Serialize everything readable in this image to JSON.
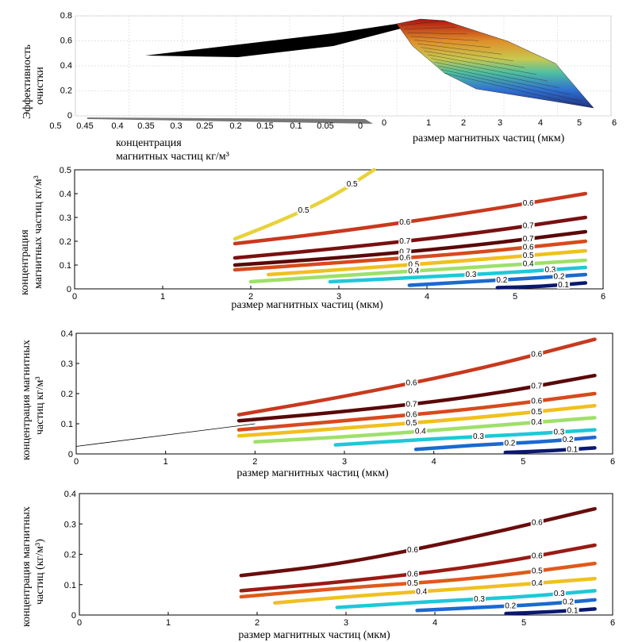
{
  "chart_data": [
    {
      "type": "surface",
      "zlabel": "Эффективность очистки",
      "xlabel_lines": [
        "концентрация",
        "магнитных частиц кг/м³"
      ],
      "ylabel": "размер магнитных частиц (мкм)",
      "z_ticks": [
        "0",
        "0.2",
        "0.4",
        "0.6",
        "0.8"
      ],
      "x_ticks": [
        "0.5",
        "0.45",
        "0.4",
        "0.35",
        "0.3",
        "0.25",
        "0.2",
        "0.15",
        "0.1",
        "0.05",
        "0"
      ],
      "y_ticks": [
        "0",
        "1",
        "2",
        "3",
        "4",
        "5",
        "6"
      ],
      "xlim": [
        0,
        0.5
      ],
      "ylim": [
        0,
        6
      ],
      "zlim": [
        0,
        0.8
      ]
    },
    {
      "type": "contour",
      "xlabel": "размер магнитных частиц (мкм)",
      "ylabel_lines": [
        "концентрация",
        "магнитных частиц кг/м³"
      ],
      "xlim": [
        0,
        6
      ],
      "ylim": [
        0,
        0.5
      ],
      "x_ticks": [
        "0",
        "1",
        "2",
        "3",
        "4",
        "5",
        "6"
      ],
      "y_ticks": [
        "0",
        "0.1",
        "0.2",
        "0.3",
        "0.4",
        "0.5"
      ],
      "levels": [
        {
          "level": 0.5,
          "label": "0.5",
          "color": "#e8d23a",
          "points": [
            [
              1.82,
              0.21
            ],
            [
              2.3,
              0.28
            ],
            [
              2.9,
              0.38
            ],
            [
              3.4,
              0.5
            ]
          ]
        },
        {
          "level": 0.6,
          "label": "0.6",
          "color": "#c8391e",
          "points": [
            [
              1.82,
              0.19
            ],
            [
              3.0,
              0.24
            ],
            [
              4.5,
              0.32
            ],
            [
              5.8,
              0.4
            ]
          ]
        },
        {
          "level": 0.7,
          "label": "0.7",
          "color": "#7a1010",
          "points": [
            [
              1.82,
              0.13
            ],
            [
              3.0,
              0.17
            ],
            [
              4.5,
              0.23
            ],
            [
              5.8,
              0.3
            ]
          ]
        },
        {
          "level": 0.7,
          "label": "0.7",
          "color": "#5a0808",
          "points": [
            [
              1.82,
              0.1
            ],
            [
              3.0,
              0.13
            ],
            [
              4.5,
              0.18
            ],
            [
              5.8,
              0.24
            ]
          ]
        },
        {
          "level": 0.6,
          "label": "0.6",
          "color": "#d84a1c",
          "points": [
            [
              1.82,
              0.08
            ],
            [
              3.0,
              0.11
            ],
            [
              4.5,
              0.15
            ],
            [
              5.8,
              0.2
            ]
          ]
        },
        {
          "level": 0.5,
          "label": "0.5",
          "color": "#f0c020",
          "points": [
            [
              2.2,
              0.06
            ],
            [
              3.2,
              0.085
            ],
            [
              4.5,
              0.12
            ],
            [
              5.8,
              0.16
            ]
          ]
        },
        {
          "level": 0.4,
          "label": "0.4",
          "color": "#9ee06a",
          "points": [
            [
              2.0,
              0.03
            ],
            [
              3.2,
              0.06
            ],
            [
              4.5,
              0.09
            ],
            [
              5.8,
              0.12
            ]
          ]
        },
        {
          "level": 0.3,
          "label": "0.3",
          "color": "#1ec8d8",
          "points": [
            [
              2.9,
              0.03
            ],
            [
              4.0,
              0.05
            ],
            [
              5.0,
              0.07
            ],
            [
              5.8,
              0.09
            ]
          ]
        },
        {
          "level": 0.2,
          "label": "0.2",
          "color": "#1a6ad0",
          "points": [
            [
              3.8,
              0.015
            ],
            [
              4.5,
              0.03
            ],
            [
              5.2,
              0.045
            ],
            [
              5.8,
              0.06
            ]
          ]
        },
        {
          "level": 0.1,
          "label": "0.1",
          "color": "#0a1870",
          "points": [
            [
              4.8,
              0.005
            ],
            [
              5.3,
              0.01
            ],
            [
              5.8,
              0.025
            ]
          ]
        }
      ]
    },
    {
      "type": "contour",
      "xlabel": "размер магнитных частиц (мкм)",
      "ylabel_lines": [
        "концентрация магнитных",
        "частиц кг/м³"
      ],
      "xlim": [
        0,
        6
      ],
      "ylim": [
        0,
        0.4
      ],
      "x_ticks": [
        "0",
        "1",
        "2",
        "3",
        "4",
        "5",
        "6"
      ],
      "y_ticks": [
        "0",
        "0.1",
        "0.2",
        "0.3",
        "0.4"
      ],
      "levels": [
        {
          "level": 0.6,
          "label": "0.6",
          "color": "#c8391e",
          "points": [
            [
              1.82,
              0.13
            ],
            [
              3.0,
              0.19
            ],
            [
              4.5,
              0.28
            ],
            [
              5.8,
              0.38
            ]
          ]
        },
        {
          "level": 0.7,
          "label": "0.7",
          "color": "#5a0808",
          "points": [
            [
              1.82,
              0.11
            ],
            [
              3.0,
              0.14
            ],
            [
              4.5,
              0.19
            ],
            [
              5.8,
              0.26
            ]
          ]
        },
        {
          "level": 0.6,
          "label": "0.6",
          "color": "#d84a1c",
          "points": [
            [
              1.82,
              0.08
            ],
            [
              3.0,
              0.11
            ],
            [
              4.5,
              0.15
            ],
            [
              5.8,
              0.2
            ]
          ]
        },
        {
          "level": 0.5,
          "label": "0.5",
          "color": "#f0c020",
          "points": [
            [
              1.82,
              0.06
            ],
            [
              3.0,
              0.085
            ],
            [
              4.5,
              0.12
            ],
            [
              5.8,
              0.16
            ]
          ]
        },
        {
          "level": 0.4,
          "label": "0.4",
          "color": "#9ee06a",
          "points": [
            [
              2.0,
              0.04
            ],
            [
              3.2,
              0.06
            ],
            [
              4.5,
              0.09
            ],
            [
              5.8,
              0.12
            ]
          ]
        },
        {
          "level": 0.3,
          "label": "0.3",
          "color": "#1ec8d8",
          "points": [
            [
              2.9,
              0.03
            ],
            [
              4.0,
              0.05
            ],
            [
              5.0,
              0.065
            ],
            [
              5.8,
              0.08
            ]
          ]
        },
        {
          "level": 0.2,
          "label": "0.2",
          "color": "#1a6ad0",
          "points": [
            [
              3.8,
              0.015
            ],
            [
              4.5,
              0.03
            ],
            [
              5.2,
              0.04
            ],
            [
              5.8,
              0.055
            ]
          ]
        },
        {
          "level": 0.1,
          "label": "0.1",
          "color": "#0a1870",
          "points": [
            [
              4.8,
              0.005
            ],
            [
              5.3,
              0.01
            ],
            [
              5.8,
              0.02
            ]
          ]
        }
      ]
    },
    {
      "type": "contour",
      "xlabel": "размер магнитных частиц (мкм)",
      "ylabel_lines": [
        "концентрация магнитных",
        "частиц (кг/м³)"
      ],
      "xlim": [
        0,
        6
      ],
      "ylim": [
        0,
        0.4
      ],
      "x_ticks": [
        "0",
        "1",
        "2",
        "3",
        "4",
        "5",
        "6"
      ],
      "y_ticks": [
        "0",
        "0.1",
        "0.2",
        "0.3",
        "0.4"
      ],
      "levels": [
        {
          "level": 0.6,
          "label": "0.6",
          "color": "#6a0c0c",
          "points": [
            [
              1.82,
              0.13
            ],
            [
              3.0,
              0.17
            ],
            [
              4.5,
              0.26
            ],
            [
              5.8,
              0.35
            ]
          ]
        },
        {
          "level": 0.6,
          "label": "0.6",
          "color": "#9a1a14",
          "points": [
            [
              1.82,
              0.08
            ],
            [
              3.0,
              0.11
            ],
            [
              4.5,
              0.16
            ],
            [
              5.8,
              0.23
            ]
          ]
        },
        {
          "level": 0.5,
          "label": "0.5",
          "color": "#e05a1a",
          "points": [
            [
              1.82,
              0.06
            ],
            [
              3.0,
              0.09
            ],
            [
              4.5,
              0.12
            ],
            [
              5.8,
              0.17
            ]
          ]
        },
        {
          "level": 0.4,
          "label": "0.4",
          "color": "#f0c020",
          "points": [
            [
              2.2,
              0.04
            ],
            [
              3.2,
              0.065
            ],
            [
              4.5,
              0.09
            ],
            [
              5.8,
              0.12
            ]
          ]
        },
        {
          "level": 0.3,
          "label": "0.3",
          "color": "#1ec8d8",
          "points": [
            [
              2.9,
              0.025
            ],
            [
              4.0,
              0.045
            ],
            [
              5.0,
              0.06
            ],
            [
              5.8,
              0.08
            ]
          ]
        },
        {
          "level": 0.2,
          "label": "0.2",
          "color": "#1a6ad0",
          "points": [
            [
              3.8,
              0.015
            ],
            [
              4.5,
              0.025
            ],
            [
              5.2,
              0.035
            ],
            [
              5.8,
              0.05
            ]
          ]
        },
        {
          "level": 0.1,
          "label": "0.1",
          "color": "#0a1870",
          "points": [
            [
              4.8,
              0.005
            ],
            [
              5.3,
              0.01
            ],
            [
              5.8,
              0.02
            ]
          ]
        }
      ]
    }
  ]
}
